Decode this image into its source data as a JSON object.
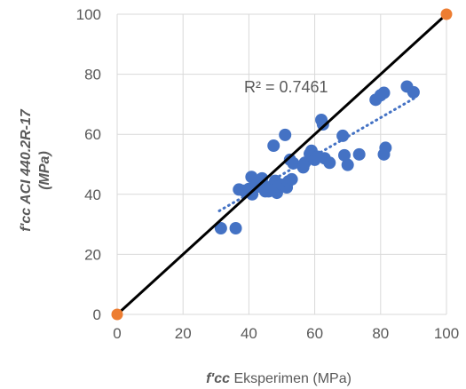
{
  "chart_data": {
    "type": "scatter",
    "xlim": [
      0,
      100
    ],
    "ylim": [
      0,
      100
    ],
    "x_ticks": [
      "0",
      "20",
      "40",
      "60",
      "80",
      "100"
    ],
    "y_ticks": [
      "0",
      "20",
      "40",
      "60",
      "80",
      "100"
    ],
    "xlabel": {
      "emphasis": "f'cc",
      "rest": " Eksperimen (MPa)"
    },
    "ylabel": {
      "line1": "f'cc ACI 440.2R-17",
      "line2": "(MPa)"
    },
    "grid": true,
    "legend": "none",
    "r2_text": "R² = 0.7461",
    "colors": {
      "points": "#4472C4",
      "trendline": "#4472C4",
      "reference_line": "#000000",
      "reference_points": "#ED7D31",
      "grid": "#D9D9D9"
    },
    "series": [
      {
        "kind": "scatter",
        "points": [
          [
            31.5,
            28.7
          ],
          [
            36.0,
            28.7
          ],
          [
            37.0,
            41.6
          ],
          [
            38.5,
            41.2
          ],
          [
            40.0,
            41.8
          ],
          [
            40.8,
            45.8
          ],
          [
            41.0,
            40.0
          ],
          [
            41.5,
            42.5
          ],
          [
            42.5,
            43.5
          ],
          [
            43.5,
            42.5
          ],
          [
            44.0,
            45.3
          ],
          [
            45.0,
            41.0
          ],
          [
            46.0,
            41.0
          ],
          [
            46.5,
            42.5
          ],
          [
            47.5,
            56.2
          ],
          [
            48.0,
            44.5
          ],
          [
            48.5,
            40.5
          ],
          [
            49.0,
            42.5
          ],
          [
            50.0,
            43.2
          ],
          [
            51.0,
            59.8
          ],
          [
            51.5,
            42.3
          ],
          [
            52.0,
            44.3
          ],
          [
            52.5,
            51.5
          ],
          [
            53.0,
            45.0
          ],
          [
            53.5,
            50.3
          ],
          [
            56.5,
            49.0
          ],
          [
            57.0,
            50.5
          ],
          [
            58.5,
            53.5
          ],
          [
            59.0,
            54.5
          ],
          [
            60.0,
            51.5
          ],
          [
            61.0,
            52.5
          ],
          [
            62.0,
            64.8
          ],
          [
            62.5,
            63.3
          ],
          [
            63.0,
            52.0
          ],
          [
            64.5,
            50.5
          ],
          [
            68.5,
            59.5
          ],
          [
            69.0,
            53.0
          ],
          [
            70.0,
            49.8
          ],
          [
            73.5,
            53.3
          ],
          [
            78.5,
            71.5
          ],
          [
            80.0,
            73.0
          ],
          [
            81.0,
            73.8
          ],
          [
            81.0,
            53.3
          ],
          [
            81.5,
            55.5
          ],
          [
            88.0,
            75.9
          ],
          [
            90.0,
            74.0
          ]
        ]
      },
      {
        "kind": "trendline",
        "style": "dotted",
        "points": [
          [
            31.0,
            34.5
          ],
          [
            91.0,
            72.5
          ]
        ]
      },
      {
        "kind": "line",
        "points": [
          [
            0,
            0
          ],
          [
            100,
            100
          ]
        ]
      },
      {
        "kind": "markers",
        "points": [
          [
            0,
            0
          ],
          [
            100,
            100
          ]
        ]
      }
    ]
  }
}
